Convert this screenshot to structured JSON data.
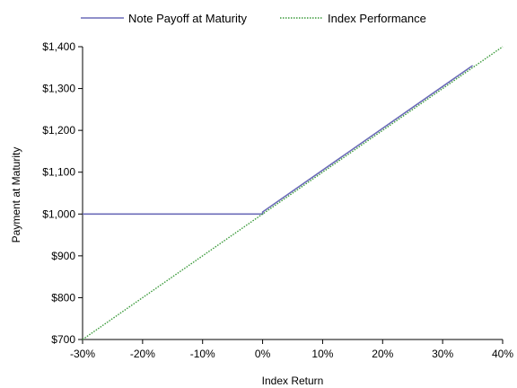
{
  "chart_data": {
    "type": "line",
    "xlabel": "Index Return",
    "ylabel": "Payment at Maturity",
    "xlim": [
      -30,
      40
    ],
    "ylim": [
      700,
      1400
    ],
    "x_ticks": [
      -30,
      -20,
      -10,
      0,
      10,
      20,
      30,
      40
    ],
    "x_tick_labels": [
      "-30%",
      "-20%",
      "-10%",
      "0%",
      "10%",
      "20%",
      "30%",
      "40%"
    ],
    "y_ticks": [
      700,
      800,
      900,
      1000,
      1100,
      1200,
      1300,
      1400
    ],
    "y_tick_labels": [
      "$700",
      "$800",
      "$900",
      "$1,000",
      "$1,100",
      "$1,200",
      "$1,300",
      "$1,400"
    ],
    "legend_position": "top",
    "grid": false,
    "series": [
      {
        "name": "Note Payoff at Maturity",
        "color": "#6b6bb8",
        "style": "solid",
        "x": [
          -30,
          0,
          0,
          35
        ],
        "y": [
          1000,
          1000,
          1005,
          1355
        ]
      },
      {
        "name": "Index Performance",
        "color": "#3a9a3a",
        "style": "dotted",
        "x": [
          -30,
          40
        ],
        "y": [
          700,
          1400
        ]
      }
    ]
  }
}
